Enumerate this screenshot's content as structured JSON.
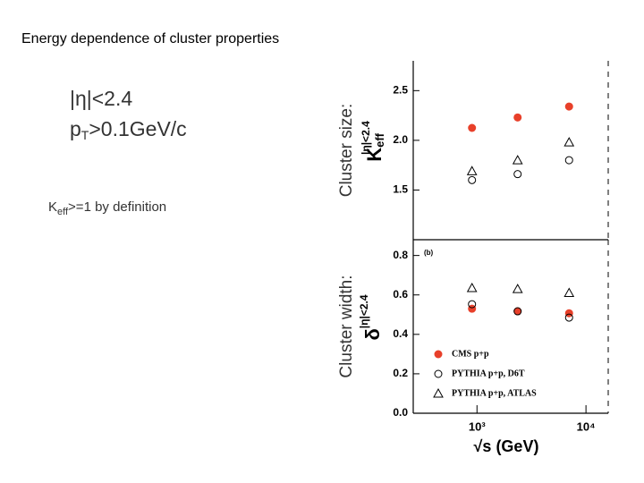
{
  "title": "Energy dependence of cluster properties",
  "notes": {
    "eta_cut": "|η|<2.4",
    "pt_p": "p",
    "pt_sub": "T",
    "pt_cut": ">0.1GeV/c",
    "k_main": "K",
    "k_sub": "eff",
    "k_rest": ">=1 by definition"
  },
  "chart_data": [
    {
      "type": "scatter",
      "log_x": true,
      "y_label": "Cluster size:",
      "y_symbol": "K",
      "y_symbol_sub": "eff",
      "y_symbol_sup": "|η|<2.4",
      "xlim": [
        260,
        16000
      ],
      "ylim": [
        1.0,
        2.8
      ],
      "yticks": [
        1.5,
        {
          "value": 2.0,
          "label": "2.0"
        },
        2.5
      ],
      "x": [
        900,
        2360,
        7000
      ],
      "series": [
        {
          "marker": "circle-filled",
          "color": "#e8402a",
          "values": [
            2.125,
            2.23,
            2.34
          ]
        },
        {
          "marker": "circle-open",
          "color": "#000000",
          "values": [
            1.6,
            1.66,
            1.8
          ]
        },
        {
          "marker": "triangle-open",
          "color": "#000000",
          "values": [
            1.69,
            1.8,
            1.98
          ]
        }
      ]
    },
    {
      "type": "scatter",
      "log_x": true,
      "panel_label": "(b)",
      "y_label": "Cluster width:",
      "y_symbol": "δ",
      "y_symbol_sup": "|η|<2.4",
      "x_label": "√s (GeV)",
      "xlim": [
        260,
        16000
      ],
      "ylim": [
        0,
        0.88
      ],
      "xticks": [
        {
          "value": 1000,
          "label": "10³"
        },
        {
          "value": 10000,
          "label": "10⁴"
        }
      ],
      "yticks": [
        {
          "value": 0,
          "label": "0.0"
        },
        0.2,
        0.4,
        0.6,
        0.8
      ],
      "x": [
        900,
        2360,
        7000
      ],
      "series": [
        {
          "name": "CMS p+p",
          "marker": "circle-filled",
          "color": "#e8402a",
          "values": [
            0.53,
            0.517,
            0.507
          ]
        },
        {
          "name": "PYTHIA p+p, D6T",
          "marker": "circle-open",
          "color": "#000000",
          "values": [
            0.553,
            0.517,
            0.485
          ]
        },
        {
          "name": "PYTHIA p+p, ATLAS",
          "marker": "triangle-open",
          "color": "#000000",
          "values": [
            0.635,
            0.63,
            0.61
          ]
        }
      ]
    }
  ]
}
